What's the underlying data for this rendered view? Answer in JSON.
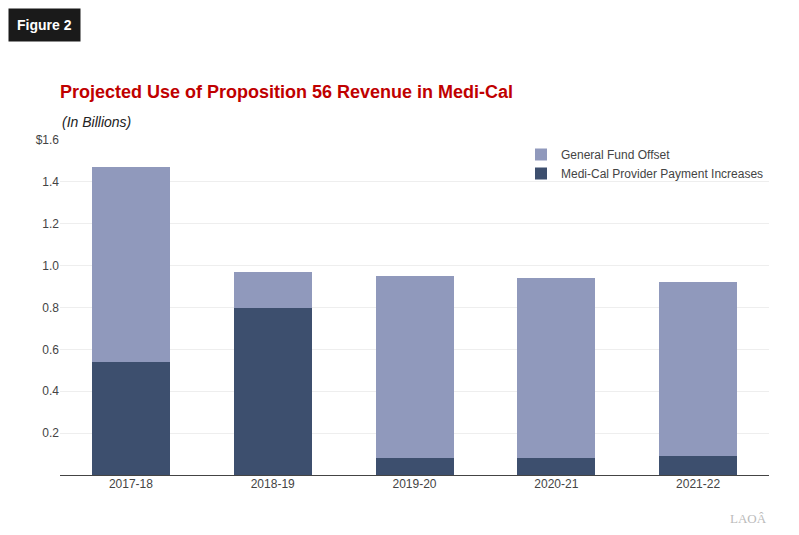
{
  "chart_data": {
    "type": "bar",
    "stacked": true,
    "title": "Projected Use of Proposition 56 Revenue in Medi-Cal",
    "subtitle": "(In Billions)",
    "annotations": [
      {
        "text": "Figure 2"
      },
      {
        "text": "LAOÂ"
      }
    ],
    "categories": [
      "2017-18",
      "2018-19",
      "2019-20",
      "2020-21",
      "2021-22"
    ],
    "series": [
      {
        "name": "Medi-Cal Provider Payment Increases",
        "color": "#3d4f6e",
        "values": [
          0.54,
          0.8,
          0.08,
          0.08,
          0.09
        ]
      },
      {
        "name": "General Fund Offset",
        "color": "#9099bc",
        "values": [
          0.93,
          0.17,
          0.87,
          0.86,
          0.83
        ]
      }
    ],
    "ylim": [
      0,
      1.6
    ],
    "yticks": [
      {
        "value": 0.0,
        "label": ""
      },
      0.2,
      0.4,
      0.6,
      0.8,
      {
        "value": 1.0,
        "label": "1.0"
      },
      1.2,
      1.4,
      {
        "value": 1.6,
        "label": "$1.6"
      }
    ],
    "grid": true,
    "legend": "upper right"
  }
}
